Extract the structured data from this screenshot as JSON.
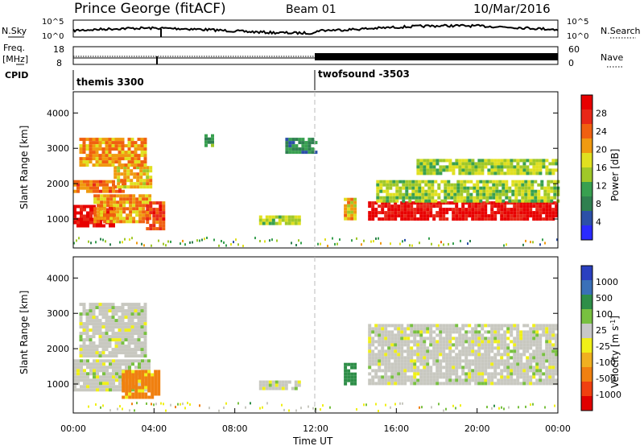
{
  "header": {
    "station": "Prince George (fitACF)",
    "beam": "Beam 01",
    "date": "10/Mar/2016"
  },
  "status_panels": {
    "nsky": {
      "left_label": "N.Sky",
      "right_label": "N.Search",
      "left_ticks": [
        "10^5",
        "10^0"
      ],
      "right_ticks": [
        "10^5",
        "10^0"
      ]
    },
    "freq": {
      "left_label_top": "Freq.",
      "left_label_unit": "[MHz]",
      "left_ticks": [
        "18",
        "8"
      ],
      "right_label": "Nave",
      "right_ticks": [
        "60",
        "0"
      ]
    },
    "cpid": {
      "label": "CPID",
      "modes": [
        {
          "name": "themis 3300",
          "start_hour": 0
        },
        {
          "name": "twofsound -3503",
          "start_hour": 12
        }
      ]
    }
  },
  "colors": {
    "power": [
      "#2a2aff",
      "#2c50a8",
      "#2f8050",
      "#38a050",
      "#a0c828",
      "#e0e020",
      "#f09a10",
      "#f06010",
      "#e82818",
      "#e80000"
    ],
    "velocity": [
      "#2a40c0",
      "#3a70b8",
      "#2e8e48",
      "#78c040",
      "#c8c8c8",
      "#f0f018",
      "#f0b020",
      "#f08010",
      "#f04010",
      "#e00000"
    ],
    "velocity_gray": "#c8c8c0"
  },
  "chart_data": [
    {
      "type": "heatmap",
      "name": "power",
      "ylabel": "Slant Range [km]",
      "yticks": [
        1000,
        2000,
        3000,
        4000
      ],
      "ylim": [
        180,
        4600
      ],
      "xlim": [
        0,
        24
      ],
      "colorbar": {
        "label": "Power [dB]",
        "ticks": [
          "4",
          "8",
          "12",
          "16",
          "20",
          "24",
          "28"
        ],
        "range": [
          0,
          30
        ]
      },
      "regions": [
        {
          "t0": 0.0,
          "t1": 2.0,
          "r0": 800,
          "r1": 1400,
          "level": 28
        },
        {
          "t0": 1.0,
          "t1": 3.8,
          "r0": 900,
          "r1": 1700,
          "level": 20
        },
        {
          "t0": 0.0,
          "t1": 2.5,
          "r0": 1800,
          "r1": 2100,
          "level": 22
        },
        {
          "t0": 2.0,
          "t1": 3.8,
          "r0": 1900,
          "r1": 2500,
          "level": 18
        },
        {
          "t0": 0.3,
          "t1": 3.5,
          "r0": 2500,
          "r1": 3300,
          "level": 20
        },
        {
          "t0": 3.6,
          "t1": 4.4,
          "r0": 700,
          "r1": 1500,
          "level": 24
        },
        {
          "t0": 6.5,
          "t1": 6.9,
          "r0": 3100,
          "r1": 3400,
          "level": 10
        },
        {
          "t0": 9.2,
          "t1": 11.2,
          "r0": 850,
          "r1": 1100,
          "level": 14
        },
        {
          "t0": 10.5,
          "t1": 12.0,
          "r0": 2900,
          "r1": 3300,
          "level": 8
        },
        {
          "t0": 13.4,
          "t1": 13.9,
          "r0": 1000,
          "r1": 1600,
          "level": 18
        },
        {
          "t0": 14.6,
          "t1": 24.0,
          "r0": 1000,
          "r1": 1500,
          "level": 28
        },
        {
          "t0": 15.0,
          "t1": 24.0,
          "r0": 1500,
          "r1": 2100,
          "level": 14
        },
        {
          "t0": 17.0,
          "t1": 24.0,
          "r0": 2300,
          "r1": 2700,
          "level": 14
        }
      ]
    },
    {
      "type": "heatmap",
      "name": "velocity",
      "ylabel": "Slant Range [km]",
      "xlabel": "Time UT",
      "yticks": [
        1000,
        2000,
        3000,
        4000
      ],
      "ylim": [
        180,
        4600
      ],
      "xlim": [
        0,
        24
      ],
      "xticks": [
        "00:00",
        "04:00",
        "08:00",
        "12:00",
        "16:00",
        "20:00",
        "00:00"
      ],
      "colorbar": {
        "label": "Velocity [m s^-1]",
        "ticks": [
          "1000",
          "500",
          "100",
          "25",
          "-25",
          "-100",
          "-500",
          "-1000"
        ]
      },
      "regions": [
        {
          "t0": 0.0,
          "t1": 3.8,
          "r0": 800,
          "r1": 1700,
          "vel": 0
        },
        {
          "t0": 0.3,
          "t1": 3.5,
          "r0": 1800,
          "r1": 3300,
          "vel": 0
        },
        {
          "t0": 2.4,
          "t1": 4.3,
          "r0": 650,
          "r1": 1400,
          "vel": -120
        },
        {
          "t0": 9.2,
          "t1": 11.2,
          "r0": 850,
          "r1": 1100,
          "vel": 0
        },
        {
          "t0": 13.4,
          "t1": 13.9,
          "r0": 1000,
          "r1": 1600,
          "vel": 150
        },
        {
          "t0": 14.6,
          "t1": 24.0,
          "r0": 1000,
          "r1": 2700,
          "vel": 0
        }
      ]
    }
  ]
}
